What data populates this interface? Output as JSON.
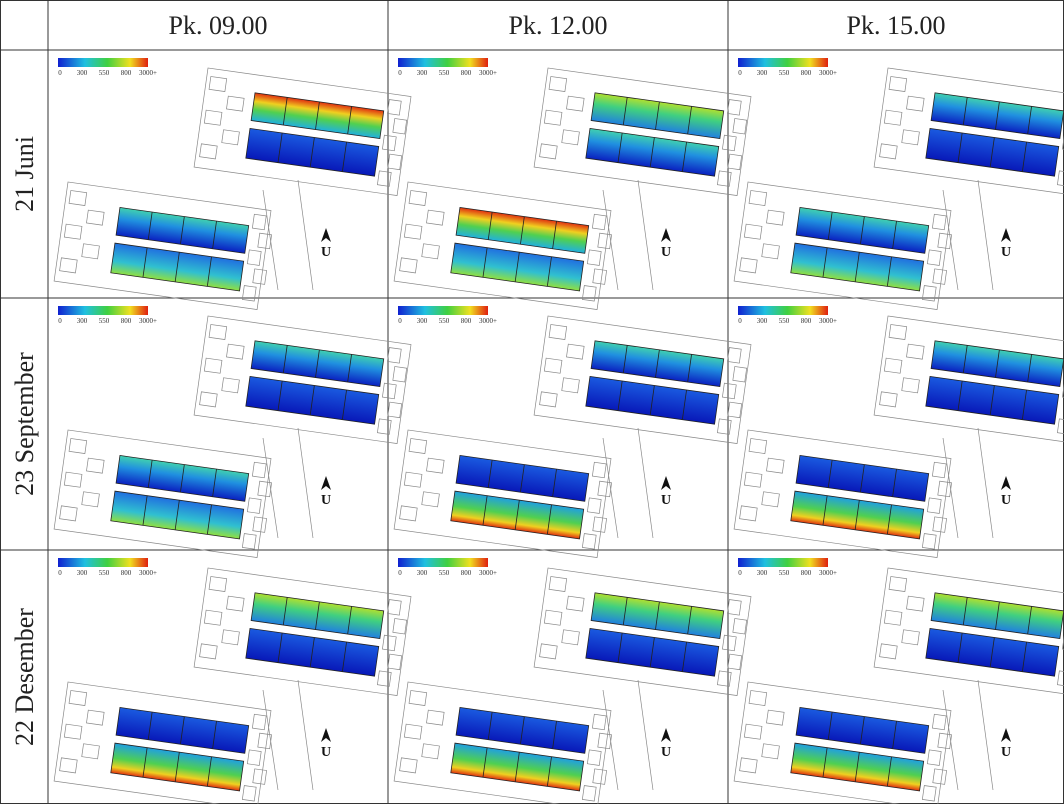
{
  "table": {
    "columns": [
      "Pk. 09.00",
      "Pk. 12.00",
      "Pk. 15.00"
    ],
    "rows": [
      "21 Juni",
      "23 September",
      "22 Desember"
    ],
    "legend": [
      "0",
      "300",
      "550",
      "800",
      "3000+"
    ],
    "north_label": "U"
  }
}
